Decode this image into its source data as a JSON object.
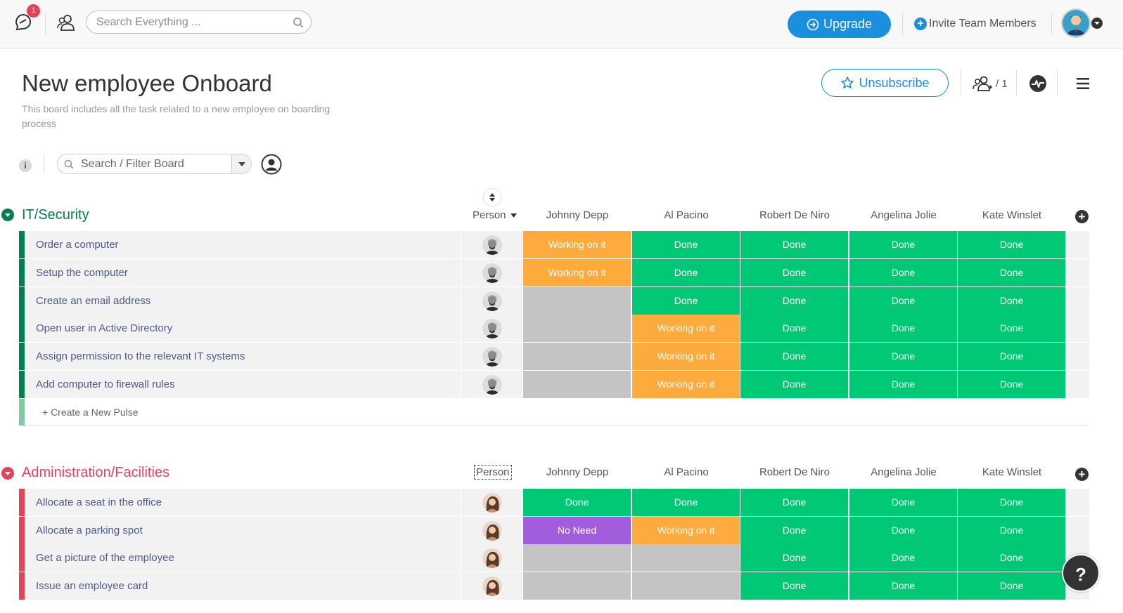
{
  "topbar": {
    "notification_count": "1",
    "search_placeholder": "Search Everything ...",
    "upgrade_label": "Upgrade",
    "invite_label": "Invite Team Members"
  },
  "board": {
    "title": "New employee Onboard",
    "description": "This board includes all the task related to a new employee on boarding process",
    "unsubscribe_label": "Unsubscribe",
    "subscribers_count": "/ 1",
    "filter_placeholder": "Search / Filter Board",
    "info_label": "i"
  },
  "colors": {
    "done": "#00c875",
    "working": "#fdab3d",
    "no_need": "#a25ddc",
    "empty": "#c4c4c4",
    "group1": "#037f4c",
    "group2": "#e2445c",
    "accent": "#1a8fe0"
  },
  "groups": [
    {
      "title": "IT/Security",
      "person_header": "Person",
      "columns": [
        "Johnny Depp",
        "Al Pacino",
        "Robert De Niro",
        "Angelina Jolie",
        "Kate Winslet"
      ],
      "rows": [
        {
          "name": "Order a computer",
          "statuses": [
            "Working on it",
            "Done",
            "Done",
            "Done",
            "Done"
          ]
        },
        {
          "name": "Setup the computer",
          "statuses": [
            "Working on it",
            "Done",
            "Done",
            "Done",
            "Done"
          ]
        },
        {
          "name": "Create an email address",
          "statuses": [
            "",
            "Done",
            "Done",
            "Done",
            "Done"
          ]
        },
        {
          "name": "Open user in Active Directory",
          "statuses": [
            "",
            "Working on it",
            "Done",
            "Done",
            "Done"
          ]
        },
        {
          "name": "Assign permission to the relevant IT systems",
          "statuses": [
            "",
            "Working on it",
            "Done",
            "Done",
            "Done"
          ]
        },
        {
          "name": "Add computer to firewall rules",
          "statuses": [
            "",
            "Working on it",
            "Done",
            "Done",
            "Done"
          ]
        }
      ],
      "new_pulse_label": "+ Create a New Pulse"
    },
    {
      "title": "Administration/Facilities",
      "person_header": "Person",
      "columns": [
        "Johnny Depp",
        "Al Pacino",
        "Robert De Niro",
        "Angelina Jolie",
        "Kate Winslet"
      ],
      "rows": [
        {
          "name": "Allocate a seat in the office",
          "statuses": [
            "Done",
            "Done",
            "Done",
            "Done",
            "Done"
          ]
        },
        {
          "name": "Allocate a parking spot",
          "statuses": [
            "No Need",
            "Working on it",
            "Done",
            "Done",
            "Done"
          ]
        },
        {
          "name": "Get a picture of the employee",
          "statuses": [
            "",
            "",
            "Done",
            "Done",
            "Done"
          ]
        },
        {
          "name": "Issue an employee card",
          "statuses": [
            "",
            "",
            "Done",
            "Done",
            "Done"
          ]
        }
      ]
    }
  ],
  "help_label": "?"
}
